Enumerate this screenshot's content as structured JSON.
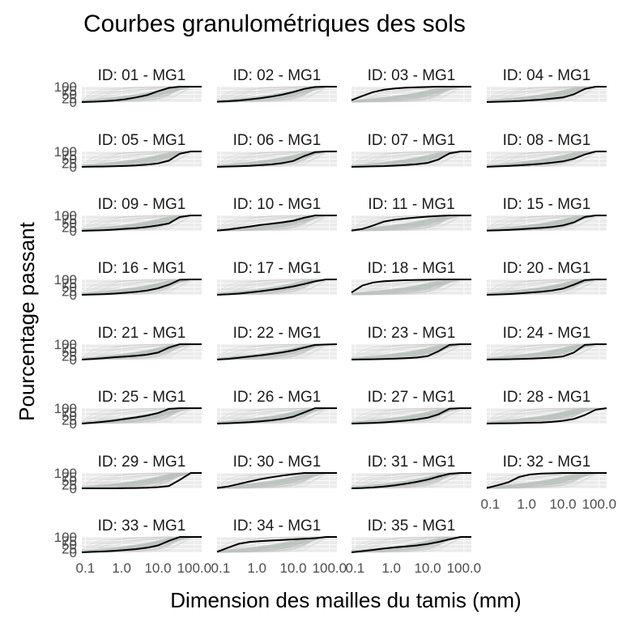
{
  "chart_data": {
    "type": "line",
    "title": "Courbes granulométriques des sols",
    "xlabel": "Dimension des mailles du tamis (mm)",
    "ylabel": "Pourcentage passant",
    "x_scale": "log10",
    "xlim": [
      0.08,
      160
    ],
    "ylim": [
      0,
      100
    ],
    "x_ticks": [
      0.1,
      1,
      10,
      100
    ],
    "x_tick_labels": [
      "0.1",
      "1.0",
      "10.0",
      "100.0"
    ],
    "y_ticks": [
      0,
      25,
      50,
      75,
      100
    ],
    "y_tick_labels": [
      "0",
      "25",
      "50",
      "75",
      "100"
    ],
    "facet_columns": 4,
    "colors": {
      "highlight": "#000000",
      "background_curves": "#bfbfbf",
      "band": "#8fae9a",
      "panel_bg": "#ebebeb",
      "grid": "#ffffff"
    },
    "sieve_sizes": [
      0.08,
      0.16,
      0.315,
      0.63,
      1.25,
      2.5,
      5,
      10,
      20,
      40,
      80,
      160
    ],
    "band": {
      "lower": [
        3,
        6,
        10,
        14,
        19,
        25,
        32,
        42,
        58,
        76,
        95,
        100
      ],
      "upper": [
        12,
        18,
        25,
        32,
        40,
        50,
        62,
        78,
        92,
        100,
        100,
        100
      ]
    },
    "panels": [
      {
        "strip": "ID:  01  -  MG1",
        "values": [
          0,
          2,
          5,
          10,
          18,
          30,
          45,
          70,
          92,
          100,
          100,
          100
        ]
      },
      {
        "strip": "ID:  02  -  MG1",
        "values": [
          2,
          5,
          10,
          17,
          25,
          35,
          48,
          65,
          85,
          98,
          100,
          100
        ]
      },
      {
        "strip": "ID:  03  -  MG1",
        "values": [
          12,
          40,
          65,
          80,
          88,
          93,
          96,
          98,
          100,
          100,
          100,
          100
        ]
      },
      {
        "strip": "ID:  04  -  MG1",
        "values": [
          0,
          2,
          4,
          7,
          11,
          16,
          22,
          30,
          50,
          85,
          100,
          100
        ]
      },
      {
        "strip": "ID:  05  -  MG1",
        "values": [
          0,
          1,
          2,
          4,
          6,
          9,
          14,
          22,
          40,
          85,
          100,
          100
        ]
      },
      {
        "strip": "ID:  06  -  MG1",
        "values": [
          0,
          2,
          4,
          7,
          11,
          16,
          24,
          38,
          70,
          95,
          100,
          100
        ]
      },
      {
        "strip": "ID:  07  -  MG1",
        "values": [
          0,
          1,
          3,
          5,
          8,
          12,
          17,
          26,
          48,
          88,
          100,
          100
        ]
      },
      {
        "strip": "ID:  08  -  MG1",
        "values": [
          0,
          3,
          6,
          10,
          15,
          20,
          27,
          35,
          52,
          80,
          100,
          100
        ]
      },
      {
        "strip": "ID:  09  -  MG1",
        "values": [
          0,
          2,
          4,
          8,
          13,
          18,
          25,
          35,
          48,
          90,
          100,
          100
        ]
      },
      {
        "strip": "ID:  10  -  MG1",
        "values": [
          1,
          8,
          18,
          28,
          38,
          46,
          55,
          65,
          85,
          100,
          100,
          100
        ]
      },
      {
        "strip": "ID:  11  -  MG1",
        "values": [
          1,
          12,
          35,
          60,
          72,
          80,
          87,
          92,
          97,
          100,
          100,
          100
        ]
      },
      {
        "strip": "ID:  15  -  MG1",
        "values": [
          1,
          3,
          6,
          10,
          14,
          19,
          25,
          35,
          55,
          90,
          100,
          100
        ]
      },
      {
        "strip": "ID:  16  -  MG1",
        "values": [
          0,
          2,
          4,
          8,
          13,
          19,
          28,
          42,
          65,
          98,
          100,
          100
        ]
      },
      {
        "strip": "ID:  17  -  MG1",
        "values": [
          0,
          3,
          8,
          15,
          23,
          32,
          42,
          55,
          70,
          88,
          100,
          100
        ]
      },
      {
        "strip": "ID:  18  -  MG1",
        "values": [
          15,
          60,
          80,
          88,
          92,
          95,
          97,
          98,
          100,
          100,
          100,
          100
        ]
      },
      {
        "strip": "ID:  20  -  MG1",
        "values": [
          0,
          2,
          5,
          9,
          14,
          20,
          28,
          40,
          65,
          95,
          100,
          100
        ]
      },
      {
        "strip": "ID:  21  -  MG1",
        "values": [
          0,
          4,
          9,
          15,
          20,
          25,
          32,
          45,
          78,
          100,
          100,
          100
        ]
      },
      {
        "strip": "ID:  22  -  MG1",
        "values": [
          0,
          5,
          12,
          20,
          28,
          37,
          47,
          60,
          78,
          95,
          98,
          100
        ]
      },
      {
        "strip": "ID:  23  -  MG1",
        "values": [
          0,
          1,
          2,
          4,
          6,
          9,
          13,
          22,
          55,
          95,
          100,
          100
        ]
      },
      {
        "strip": "ID:  24  -  MG1",
        "values": [
          0,
          1,
          2,
          4,
          6,
          9,
          13,
          20,
          45,
          95,
          100,
          100
        ]
      },
      {
        "strip": "ID:  25  -  MG1",
        "values": [
          0,
          5,
          12,
          20,
          30,
          40,
          52,
          68,
          95,
          100,
          100,
          100
        ]
      },
      {
        "strip": "ID:  26  -  MG1",
        "values": [
          0,
          2,
          5,
          9,
          14,
          21,
          30,
          45,
          72,
          100,
          100,
          100
        ]
      },
      {
        "strip": "ID:  27  -  MG1",
        "values": [
          0,
          2,
          4,
          8,
          13,
          19,
          27,
          38,
          60,
          97,
          100,
          100
        ]
      },
      {
        "strip": "ID:  28  -  MG1",
        "values": [
          0,
          1,
          2,
          3,
          5,
          7,
          11,
          18,
          30,
          55,
          90,
          100
        ]
      },
      {
        "strip": "ID:  29  -  MG1",
        "values": [
          0,
          0,
          0,
          0,
          1,
          2,
          4,
          8,
          15,
          55,
          100,
          100
        ]
      },
      {
        "strip": "ID:  30  -  MG1",
        "values": [
          2,
          12,
          28,
          45,
          60,
          72,
          83,
          92,
          100,
          100,
          100,
          100
        ]
      },
      {
        "strip": "ID:  31  -  MG1",
        "values": [
          0,
          2,
          6,
          12,
          20,
          30,
          42,
          57,
          77,
          95,
          100,
          100
        ]
      },
      {
        "strip": "ID:  32  -  MG1",
        "values": [
          2,
          20,
          40,
          75,
          90,
          96,
          98,
          100,
          100,
          100,
          100,
          100
        ]
      },
      {
        "strip": "ID:  33  -  MG1",
        "values": [
          0,
          3,
          6,
          10,
          15,
          21,
          30,
          45,
          75,
          100,
          100,
          100
        ]
      },
      {
        "strip": "ID:  34  -  MG1",
        "values": [
          3,
          30,
          55,
          68,
          73,
          77,
          80,
          84,
          88,
          92,
          100,
          100
        ]
      },
      {
        "strip": "ID:  35  -  MG1",
        "values": [
          0,
          8,
          16,
          25,
          32,
          38,
          45,
          54,
          68,
          85,
          100,
          100
        ]
      }
    ]
  }
}
